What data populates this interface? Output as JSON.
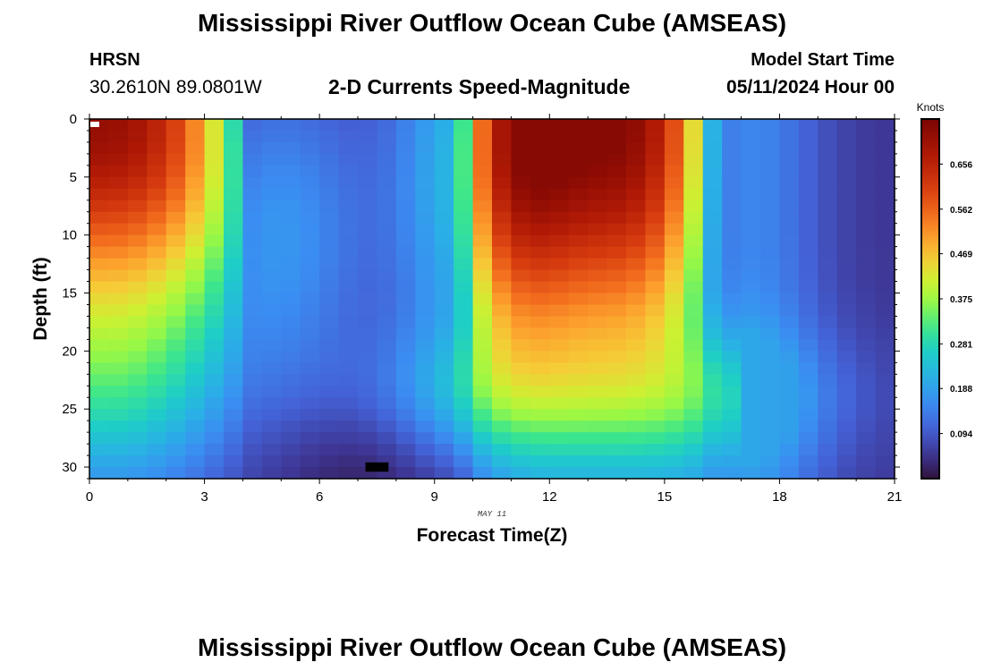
{
  "header": {
    "title": "Mississippi River Outflow Ocean Cube (AMSEAS)",
    "station_code": "HRSN",
    "coordinates": "30.2610N  89.0801W",
    "subtitle": "2-D Currents Speed-Magnitude",
    "model_start_label": "Model Start Time",
    "model_start_value": "05/11/2024 Hour 00"
  },
  "footer": {
    "title": "Mississippi River Outflow Ocean Cube (AMSEAS)"
  },
  "chart_data": {
    "type": "heatmap",
    "title": "2-D Currents Speed-Magnitude",
    "xlabel": "Forecast Time(Z)",
    "ylabel": "Depth (ft)",
    "date_label": "MAY 11",
    "x_range": [
      0,
      21
    ],
    "y_range": [
      0,
      31
    ],
    "x_ticks": [
      0,
      3,
      6,
      9,
      12,
      15,
      18,
      21
    ],
    "y_ticks": [
      0,
      5,
      10,
      15,
      20,
      25,
      30
    ],
    "colorbar": {
      "label": "Knots",
      "range": [
        0,
        0.75
      ],
      "ticks": [
        0.094,
        0.188,
        0.281,
        0.375,
        0.469,
        0.562,
        0.656
      ]
    },
    "cell_hours": 0.5,
    "cell_depth_ft": 1,
    "min_marker": {
      "hour": 7.5,
      "depth_ft": 30
    },
    "data_extent": {
      "hour_min": 0,
      "hour_max": 21,
      "depth_min": 0,
      "depth_max": 31,
      "speed_min": 0.02,
      "speed_max": 0.73
    }
  }
}
